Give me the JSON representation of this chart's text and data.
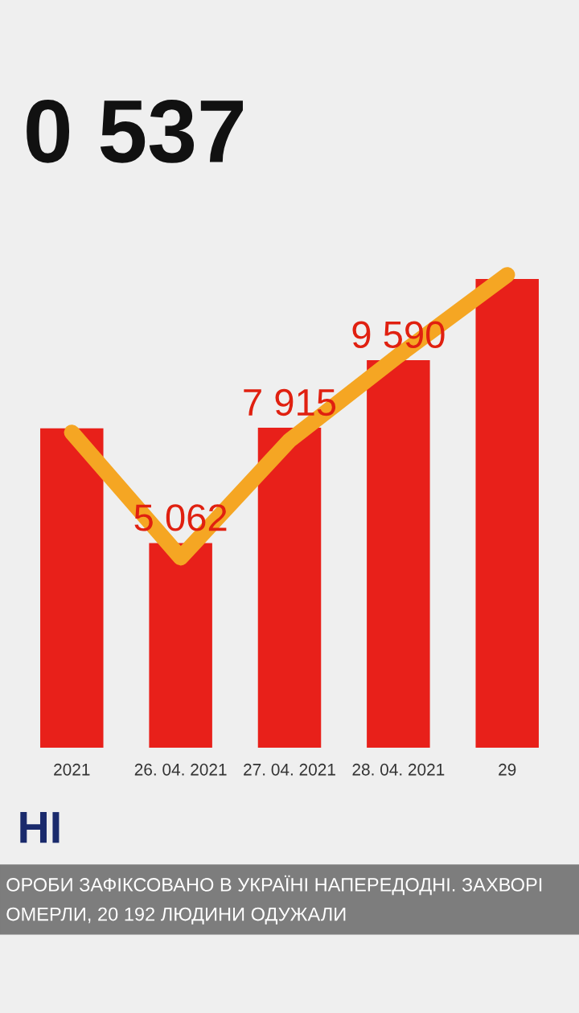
{
  "chart_data": {
    "type": "bar",
    "title": "0 537",
    "categories": [
      "2021",
      "26. 04. 2021",
      "27. 04. 2021",
      "28. 04. 2021",
      "29"
    ],
    "series": [
      {
        "color": "#e8201a",
        "values": [
          7900,
          5062,
          7915,
          9590,
          11600
        ],
        "value_labels": [
          null,
          "5 062",
          "7 915",
          "9 590",
          null
        ]
      },
      {
        "type": "line",
        "color": "#f5a623",
        "values": [
          7800,
          4700,
          7600,
          9700,
          11700
        ]
      }
    ],
    "annotations": [
      "НІ",
      "ОРОБИ ЗАФІКСОВАНО В УКРАЇНІ НАПЕРЕДОДНІ. ЗАХВОРІ",
      "ОМЕРЛИ, 20 192 ЛЮДИНИ ОДУЖАЛИ"
    ],
    "grid": false
  }
}
